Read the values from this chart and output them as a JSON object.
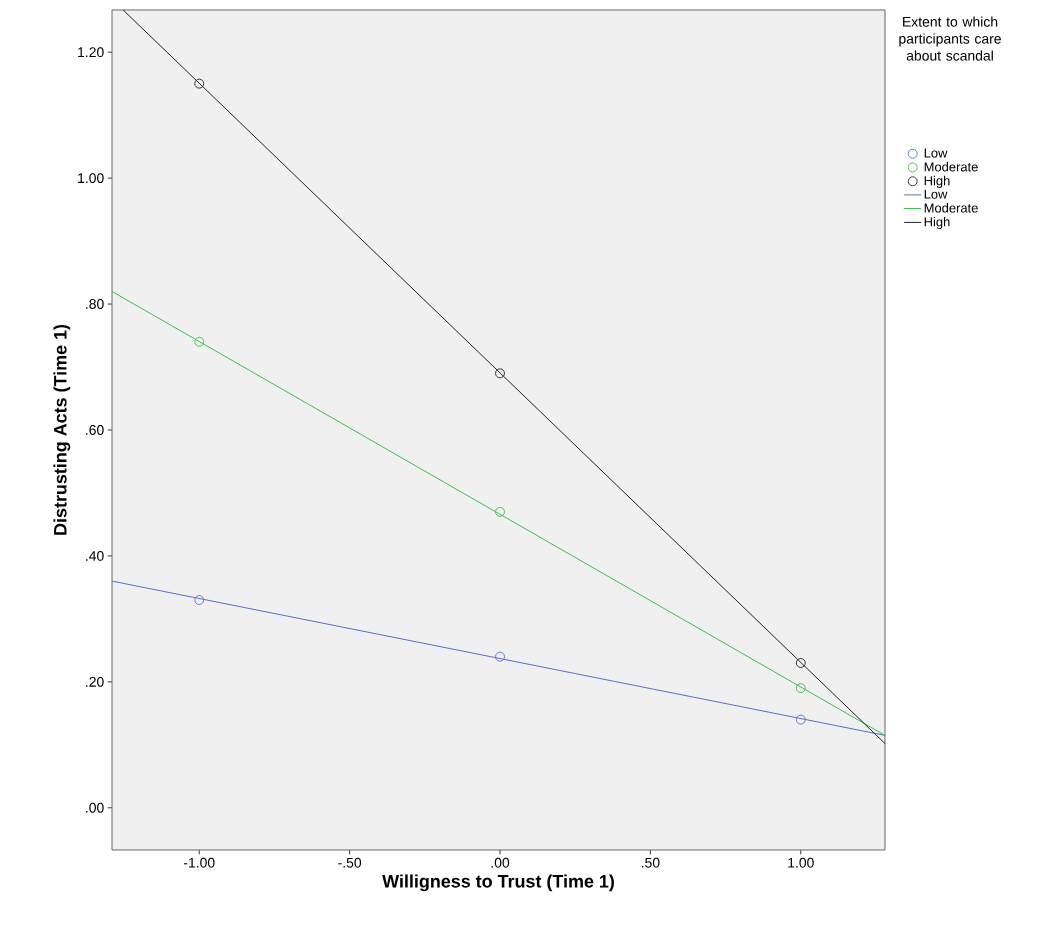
{
  "chart_data": {
    "type": "scatter",
    "xlabel": "Willigness to Trust (Time 1)",
    "ylabel": "Distrusting Acts (Time 1)",
    "legend_title": "Extent to which participants care about scandal",
    "legend": "right",
    "grid": false,
    "xlim": [
      -1.29,
      1.28
    ],
    "ylim": [
      -0.067,
      1.267
    ],
    "xticks": [
      {
        "value": -1.0,
        "label": "-1.00"
      },
      {
        "value": -0.5,
        "label": "-.50"
      },
      {
        "value": 0,
        "label": ".00"
      },
      {
        "value": 0.5,
        "label": ".50"
      },
      {
        "value": 1.0,
        "label": "1.00"
      }
    ],
    "yticks": [
      {
        "value": 0,
        "label": ".00"
      },
      {
        "value": 0.2,
        "label": ".20"
      },
      {
        "value": 0.4,
        "label": ".40"
      },
      {
        "value": 0.6,
        "label": ".60"
      },
      {
        "value": 0.8,
        "label": ".80"
      },
      {
        "value": 1.0,
        "label": "1.00"
      },
      {
        "value": 1.2,
        "label": "1.20"
      }
    ],
    "series": [
      {
        "name": "Low",
        "marker": "circle",
        "color": "#5a6ec8",
        "x": [
          -1.0,
          0,
          1.0
        ],
        "values": [
          0.33,
          0.24,
          0.14
        ]
      },
      {
        "name": "Moderate",
        "marker": "circle",
        "color": "#3ebd4e",
        "x": [
          -1.0,
          0,
          1.0
        ],
        "values": [
          0.74,
          0.47,
          0.19
        ]
      },
      {
        "name": "High",
        "marker": "circle",
        "color": "#222222",
        "x": [
          -1.0,
          0,
          1.0
        ],
        "values": [
          1.15,
          0.69,
          0.23
        ]
      },
      {
        "name": "Low",
        "type": "line",
        "marker": "none",
        "color": "#5a6ec8",
        "x": [
          -1.29,
          1.28
        ],
        "values": [
          0.36,
          0.115
        ]
      },
      {
        "name": "Moderate",
        "type": "line",
        "marker": "none",
        "color": "#3ebd4e",
        "x": [
          -1.29,
          1.28
        ],
        "values": [
          0.82,
          0.115
        ]
      },
      {
        "name": "High",
        "type": "line",
        "marker": "none",
        "color": "#222222",
        "x": [
          -1.253,
          1.28
        ],
        "values": [
          1.267,
          0.102
        ]
      }
    ]
  }
}
